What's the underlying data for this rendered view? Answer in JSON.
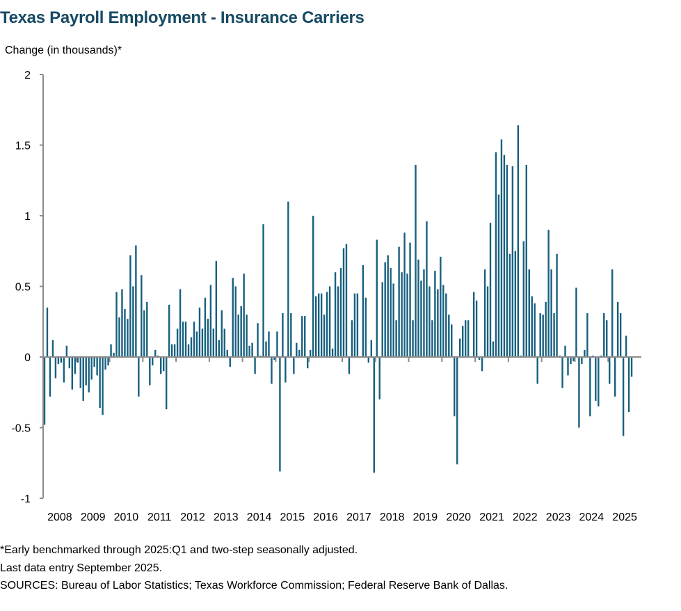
{
  "chart_data": {
    "type": "bar",
    "title": "Texas Payroll Employment - Insurance Carriers",
    "ylabel": "Change (in thousands)*",
    "xlabel": "",
    "frequency": "monthly",
    "start": "2008-01",
    "end": "2025-09",
    "ylim": [
      -1,
      2
    ],
    "yticks": [
      -1,
      -0.5,
      0,
      0.5,
      1,
      1.5,
      2
    ],
    "ytick_labels": [
      "-1",
      "-0.5",
      "0",
      "0.5",
      "1",
      "1.5",
      "2"
    ],
    "xtick_labels": [
      "2008",
      "2009",
      "2010",
      "2011",
      "2012",
      "2013",
      "2014",
      "2015",
      "2016",
      "2017",
      "2018",
      "2019",
      "2020",
      "2021",
      "2022",
      "2023",
      "2024",
      "2025"
    ],
    "bar_color": "#17607f",
    "axis_color": "#8c8c8c",
    "grid": false,
    "values": [
      -0.48,
      0.35,
      -0.28,
      0.12,
      -0.15,
      -0.05,
      -0.04,
      -0.18,
      0.08,
      -0.08,
      -0.23,
      -0.12,
      -0.04,
      -0.22,
      -0.31,
      -0.2,
      -0.25,
      -0.16,
      -0.07,
      -0.13,
      -0.36,
      -0.41,
      -0.09,
      -0.06,
      0.09,
      0.03,
      0.46,
      0.28,
      0.48,
      0.34,
      0.27,
      0.72,
      0.5,
      0.79,
      -0.28,
      0.58,
      0.33,
      0.39,
      -0.2,
      -0.06,
      0.05,
      0.01,
      -0.12,
      -0.1,
      -0.37,
      0.37,
      0.09,
      0.09,
      0.2,
      0.48,
      0.25,
      0.25,
      0.09,
      0.14,
      0.25,
      0.18,
      0.35,
      0.2,
      0.42,
      0.27,
      0.51,
      0.2,
      0.68,
      0.12,
      0.33,
      0.2,
      0.05,
      -0.07,
      0.56,
      0.5,
      0.3,
      0.36,
      0.59,
      0.3,
      0.08,
      0.1,
      -0.12,
      0.24,
      0.01,
      0.94,
      0.11,
      0.18,
      -0.19,
      -0.02,
      0.18,
      -0.81,
      0.31,
      -0.18,
      1.1,
      0.31,
      -0.12,
      0.1,
      0.05,
      0.29,
      0.29,
      -0.08,
      0.05,
      1.0,
      0.43,
      0.45,
      0.45,
      0.3,
      0.46,
      0.5,
      0.06,
      0.6,
      0.5,
      0.63,
      0.77,
      0.8,
      -0.12,
      0.26,
      0.45,
      0.45,
      0.0,
      0.65,
      0.42,
      -0.04,
      0.12,
      -0.82,
      0.83,
      -0.3,
      0.53,
      0.67,
      0.72,
      0.63,
      0.52,
      0.26,
      0.78,
      0.6,
      0.88,
      0.59,
      0.81,
      0.26,
      1.36,
      0.69,
      0.54,
      0.62,
      0.96,
      0.5,
      0.26,
      0.61,
      0.48,
      0.71,
      0.51,
      0.45,
      0.3,
      0.23,
      -0.42,
      -0.76,
      0.13,
      0.22,
      0.26,
      0.26,
      0.0,
      0.46,
      0.4,
      -0.02,
      -0.1,
      0.62,
      0.5,
      0.95,
      0.11,
      1.45,
      1.15,
      1.54,
      1.43,
      1.36,
      0.73,
      1.35,
      0.75,
      1.64,
      0.01,
      0.82,
      1.36,
      0.62,
      0.43,
      0.38,
      -0.19,
      0.31,
      0.3,
      0.39,
      0.9,
      0.62,
      0.31,
      0.73,
      0.01,
      -0.22,
      0.08,
      -0.13,
      -0.05,
      -0.03,
      0.49,
      -0.5,
      -0.05,
      0.05,
      0.31,
      -0.42,
      0.01,
      -0.31,
      -0.35,
      0.01,
      0.31,
      0.26,
      -0.19,
      0.62,
      -0.28,
      0.39,
      0.31,
      -0.56,
      0.15,
      -0.39,
      -0.14
    ]
  },
  "footnotes": {
    "note": "*Early benchmarked through 2025:Q1 and two-step seasonally adjusted.",
    "last_entry": "Last data entry September 2025.",
    "sources": "SOURCES:  Bureau of Labor Statistics; Texas Workforce Commission;  Federal Reserve Bank of Dallas."
  }
}
